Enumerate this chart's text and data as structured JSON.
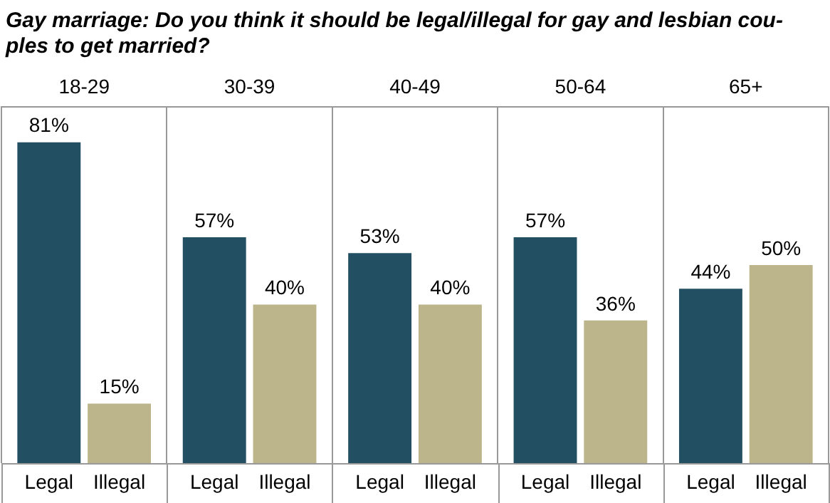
{
  "chart_data": {
    "type": "bar",
    "title": "Gay marriage: Do you think it should be legal/illegal for gay and lesbian cou-ples to get married?",
    "categories": [
      "18-29",
      "30-39",
      "40-49",
      "50-64",
      "65+"
    ],
    "series": [
      {
        "name": "Legal",
        "color": "#234f63",
        "values": [
          81,
          57,
          53,
          57,
          44
        ],
        "value_labels": [
          "81%",
          "57%",
          "53%",
          "57%",
          "44%"
        ]
      },
      {
        "name": "Illegal",
        "color": "#bcb48a",
        "values": [
          15,
          40,
          40,
          36,
          50
        ],
        "value_labels": [
          "15%",
          "40%",
          "40%",
          "36%",
          "50%"
        ]
      }
    ],
    "grid": "x",
    "legend": false
  }
}
